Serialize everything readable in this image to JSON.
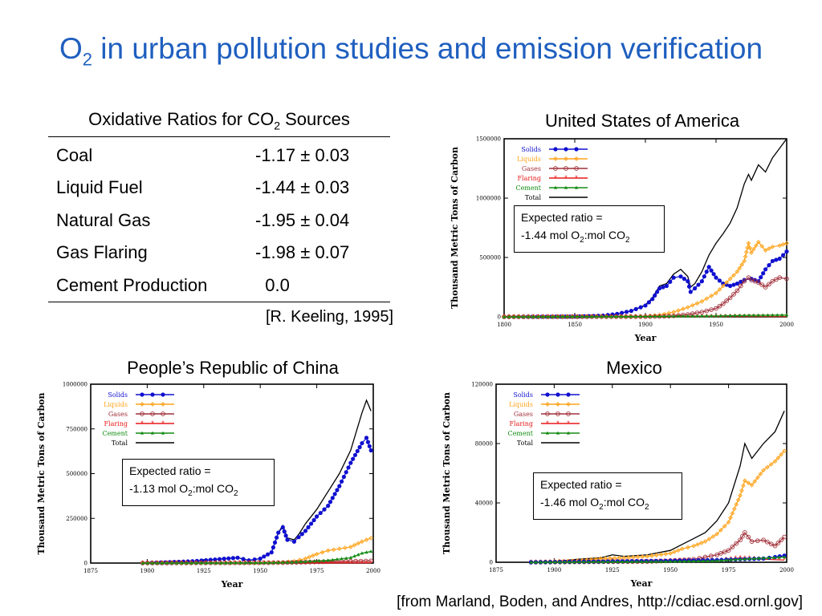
{
  "slide": {
    "title_main": "O",
    "title_sub": "2",
    "title_rest": " in urban pollution studies and emission verification"
  },
  "table": {
    "title_pre": "Oxidative Ratios for CO",
    "title_sub": "2",
    "title_post": " Sources",
    "rows": [
      {
        "label": "Coal",
        "value": "-1.17 ± 0.03"
      },
      {
        "label": "Liquid Fuel",
        "value": "-1.44 ± 0.03"
      },
      {
        "label": "Natural Gas",
        "value": "-1.95 ± 0.04"
      },
      {
        "label": "Gas Flaring",
        "value": "-1.98 ± 0.07"
      },
      {
        "label": "Cement Production",
        "value": "  0.0"
      }
    ],
    "citation": "[R. Keeling, 1995]"
  },
  "footer_citation": "[from Marland, Boden, and Andres, http://cdiac.esd.ornl.gov]",
  "colors": {
    "title": "#1f5fbf",
    "solids": "#1010d0",
    "liquids": "#ffa31a",
    "gases": "#a0303a",
    "flaring": "#e81818",
    "cement": "#148c14",
    "total": "#000000"
  },
  "chart_data": [
    {
      "type": "line",
      "title": "United States of America",
      "xlabel": "Year",
      "ylabel": "Thousand Metric Tons of Carbon",
      "xlim": [
        1800,
        2000
      ],
      "ylim": [
        0,
        1500000
      ],
      "xticks": [
        1800,
        1850,
        1900,
        1950,
        2000
      ],
      "yticks": [
        0,
        500000,
        1000000,
        1500000
      ],
      "ytick_labels": [
        "0",
        "500000",
        "1000000",
        "1500000"
      ],
      "legend": [
        "Solids",
        "Liquids",
        "Gases",
        "Flaring",
        "Cement",
        "Total"
      ],
      "legend_position": "top-left",
      "callout": {
        "line1": "Expected ratio =",
        "line2_pre": "-1.44 mol O",
        "line2_sub": "2",
        "line2_post": ":mol CO",
        "line2_sub2": "2"
      },
      "series": [
        {
          "name": "Total",
          "x": [
            1800,
            1850,
            1870,
            1880,
            1890,
            1900,
            1905,
            1910,
            1915,
            1920,
            1925,
            1930,
            1932,
            1935,
            1940,
            1945,
            1950,
            1955,
            1960,
            1965,
            1970,
            1973,
            1975,
            1980,
            1985,
            1990,
            1995,
            2000
          ],
          "y": [
            0,
            2000,
            10000,
            25000,
            50000,
            100000,
            160000,
            260000,
            280000,
            360000,
            400000,
            340000,
            250000,
            280000,
            380000,
            520000,
            620000,
            700000,
            790000,
            920000,
            1120000,
            1200000,
            1150000,
            1280000,
            1220000,
            1340000,
            1420000,
            1500000
          ]
        },
        {
          "name": "Solids",
          "x": [
            1800,
            1850,
            1870,
            1880,
            1890,
            1900,
            1905,
            1910,
            1915,
            1920,
            1925,
            1930,
            1932,
            1935,
            1940,
            1945,
            1950,
            1955,
            1960,
            1965,
            1970,
            1975,
            1980,
            1985,
            1990,
            1995,
            2000
          ],
          "y": [
            0,
            2000,
            10000,
            25000,
            50000,
            95000,
            150000,
            240000,
            260000,
            330000,
            340000,
            300000,
            210000,
            240000,
            300000,
            420000,
            330000,
            280000,
            260000,
            280000,
            310000,
            320000,
            300000,
            400000,
            470000,
            490000,
            550000
          ]
        },
        {
          "name": "Liquids",
          "x": [
            1800,
            1900,
            1910,
            1920,
            1930,
            1940,
            1950,
            1955,
            1960,
            1965,
            1970,
            1973,
            1975,
            1980,
            1985,
            1990,
            1995,
            2000
          ],
          "y": [
            0,
            5000,
            15000,
            40000,
            80000,
            130000,
            200000,
            260000,
            320000,
            380000,
            470000,
            620000,
            540000,
            630000,
            560000,
            590000,
            600000,
            620000
          ]
        },
        {
          "name": "Gases",
          "x": [
            1800,
            1900,
            1910,
            1920,
            1930,
            1940,
            1950,
            1955,
            1960,
            1965,
            1970,
            1973,
            1975,
            1980,
            1985,
            1990,
            1995,
            2000
          ],
          "y": [
            0,
            1000,
            3000,
            8000,
            20000,
            40000,
            70000,
            110000,
            160000,
            220000,
            300000,
            330000,
            310000,
            290000,
            250000,
            300000,
            330000,
            320000
          ]
        },
        {
          "name": "Flaring",
          "x": [
            1800,
            1900,
            1950,
            2000
          ],
          "y": [
            0,
            1000,
            3000,
            2000
          ]
        },
        {
          "name": "Cement",
          "x": [
            1800,
            1900,
            1950,
            1970,
            2000
          ],
          "y": [
            0,
            3000,
            8000,
            12000,
            15000
          ]
        }
      ]
    },
    {
      "type": "line",
      "title": "People’s Republic of China",
      "xlabel": "Year",
      "ylabel": "Thousand Metric Tons of Carbon",
      "xlim": [
        1875,
        2000
      ],
      "ylim": [
        0,
        1000000
      ],
      "xticks": [
        1875,
        1900,
        1925,
        1950,
        1975,
        2000
      ],
      "yticks": [
        0,
        250000,
        500000,
        750000,
        1000000
      ],
      "ytick_labels": [
        "0",
        "250000",
        "500000",
        "750000",
        "1000000"
      ],
      "legend": [
        "Solids",
        "Liquids",
        "Gases",
        "Flaring",
        "Cement",
        "Total"
      ],
      "legend_position": "top-left",
      "callout": {
        "line1": "Expected ratio =",
        "line2_pre": "-1.13 mol O",
        "line2_sub": "2",
        "line2_post": ":mol CO",
        "line2_sub2": "2"
      },
      "series": [
        {
          "name": "Total",
          "x": [
            1898,
            1910,
            1920,
            1930,
            1940,
            1945,
            1950,
            1955,
            1958,
            1960,
            1962,
            1965,
            1967,
            1970,
            1975,
            1980,
            1985,
            1990,
            1995,
            1997,
            1999
          ],
          "y": [
            0,
            5000,
            10000,
            20000,
            30000,
            15000,
            25000,
            60000,
            170000,
            210000,
            140000,
            130000,
            160000,
            220000,
            300000,
            400000,
            500000,
            630000,
            840000,
            910000,
            850000
          ]
        },
        {
          "name": "Solids",
          "x": [
            1898,
            1910,
            1920,
            1930,
            1940,
            1945,
            1950,
            1955,
            1958,
            1960,
            1962,
            1965,
            1967,
            1970,
            1975,
            1980,
            1985,
            1990,
            1995,
            1997,
            1999
          ],
          "y": [
            0,
            5000,
            10000,
            20000,
            30000,
            15000,
            25000,
            60000,
            170000,
            200000,
            130000,
            120000,
            145000,
            180000,
            260000,
            320000,
            430000,
            560000,
            670000,
            700000,
            630000
          ]
        },
        {
          "name": "Liquids",
          "x": [
            1898,
            1950,
            1960,
            1965,
            1970,
            1975,
            1980,
            1985,
            1990,
            1995,
            1999
          ],
          "y": [
            0,
            1000,
            5000,
            10000,
            25000,
            50000,
            70000,
            80000,
            90000,
            120000,
            140000
          ]
        },
        {
          "name": "Gases",
          "x": [
            1898,
            1960,
            1970,
            1980,
            1990,
            1999
          ],
          "y": [
            0,
            2000,
            5000,
            8000,
            10000,
            12000
          ]
        },
        {
          "name": "Flaring",
          "x": [
            1898,
            1999
          ],
          "y": [
            0,
            1000
          ]
        },
        {
          "name": "Cement",
          "x": [
            1898,
            1950,
            1960,
            1970,
            1980,
            1990,
            1995,
            1999
          ],
          "y": [
            0,
            1000,
            3000,
            8000,
            15000,
            30000,
            55000,
            65000
          ]
        }
      ]
    },
    {
      "type": "line",
      "title": "Mexico",
      "xlabel": "Year",
      "ylabel": "Thousand Metric Tons of Carbon",
      "xlim": [
        1875,
        2000
      ],
      "ylim": [
        0,
        120000
      ],
      "xticks": [
        1875,
        1900,
        1925,
        1950,
        1975,
        2000
      ],
      "yticks": [
        0,
        40000,
        80000,
        120000
      ],
      "ytick_labels": [
        "0",
        "40000",
        "80000",
        "120000"
      ],
      "legend": [
        "Solids",
        "Liquids",
        "Gases",
        "Flaring",
        "Cement",
        "Total"
      ],
      "legend_position": "top-left",
      "callout": {
        "line1": "Expected ratio =",
        "line2_pre": "-1.46 mol O",
        "line2_sub": "2",
        "line2_post": ":mol CO",
        "line2_sub2": "2"
      },
      "series": [
        {
          "name": "Total",
          "x": [
            1890,
            1900,
            1910,
            1920,
            1925,
            1930,
            1940,
            1950,
            1955,
            1960,
            1965,
            1970,
            1975,
            1980,
            1982,
            1985,
            1990,
            1995,
            1999
          ],
          "y": [
            0,
            500,
            2000,
            3000,
            5000,
            4000,
            5000,
            8000,
            12000,
            16000,
            20000,
            28000,
            40000,
            65000,
            80000,
            70000,
            80000,
            88000,
            102000
          ]
        },
        {
          "name": "Liquids",
          "x": [
            1890,
            1910,
            1920,
            1930,
            1940,
            1950,
            1955,
            1960,
            1965,
            1970,
            1975,
            1980,
            1982,
            1985,
            1990,
            1995,
            1999
          ],
          "y": [
            0,
            1000,
            2500,
            3000,
            4000,
            6000,
            9000,
            11000,
            14000,
            19000,
            27000,
            45000,
            55000,
            52000,
            62000,
            68000,
            75000
          ]
        },
        {
          "name": "Gases",
          "x": [
            1890,
            1940,
            1950,
            1960,
            1965,
            1970,
            1975,
            1980,
            1982,
            1985,
            1990,
            1995,
            1999
          ],
          "y": [
            0,
            500,
            1000,
            2000,
            3500,
            5000,
            8000,
            15000,
            20000,
            14000,
            15000,
            11000,
            17000
          ]
        },
        {
          "name": "Flaring",
          "x": [
            1890,
            1970,
            1980,
            1990,
            1999
          ],
          "y": [
            0,
            1000,
            3000,
            2000,
            1500
          ]
        },
        {
          "name": "Solids",
          "x": [
            1890,
            1950,
            1970,
            1980,
            1990,
            1995,
            1999
          ],
          "y": [
            0,
            1000,
            1500,
            2000,
            2500,
            3500,
            4500
          ]
        },
        {
          "name": "Cement",
          "x": [
            1890,
            1950,
            1970,
            1980,
            1990,
            1999
          ],
          "y": [
            0,
            500,
            1000,
            2000,
            2800,
            3500
          ]
        }
      ]
    }
  ]
}
